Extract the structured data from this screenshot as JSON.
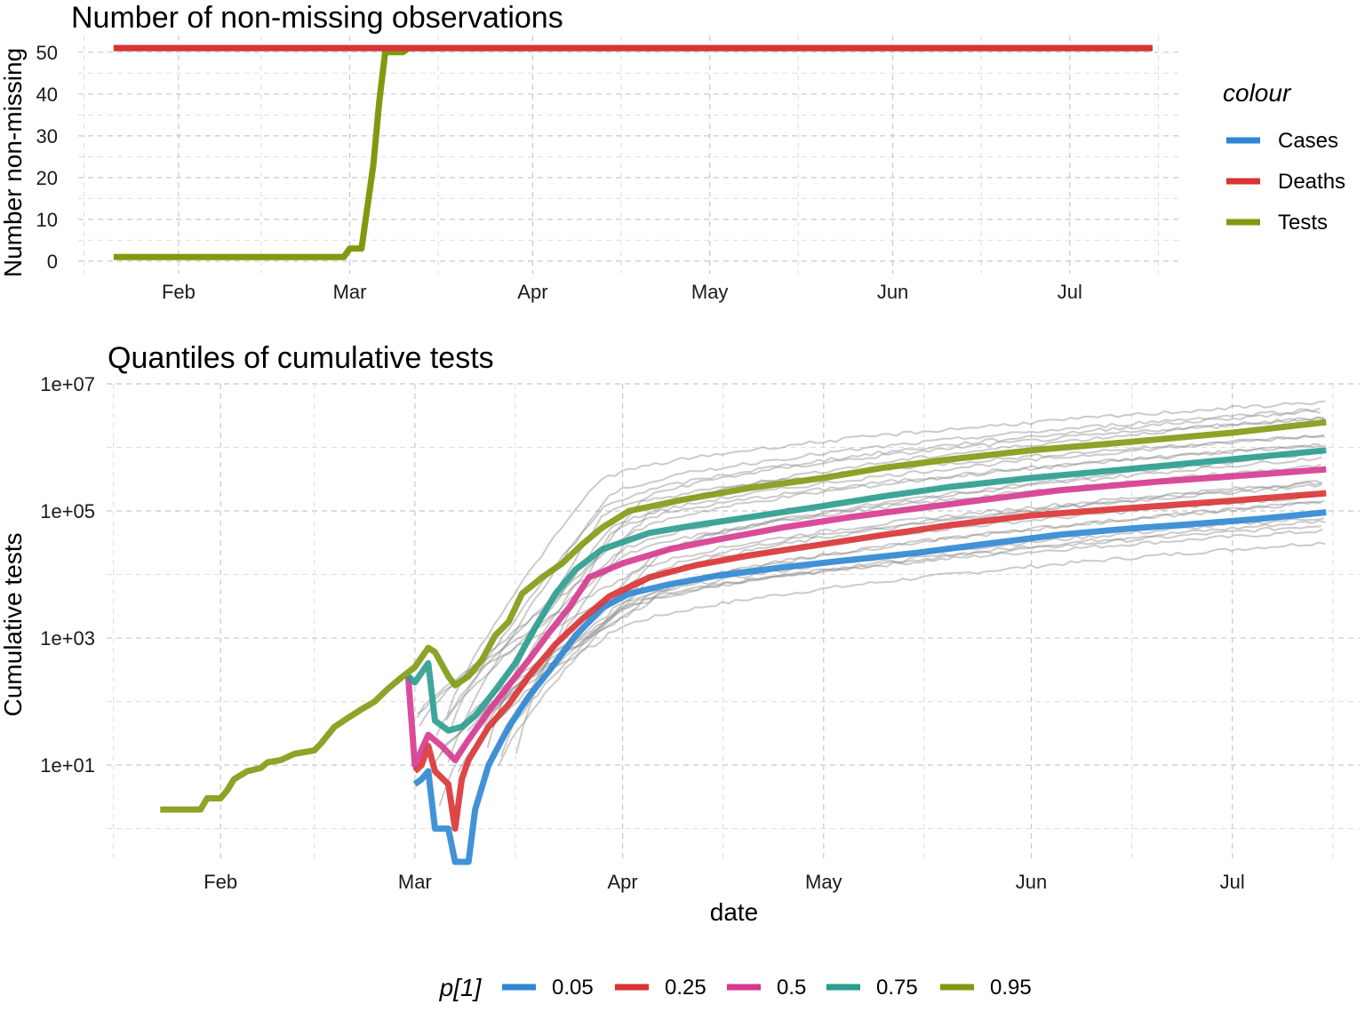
{
  "chart_data": [
    {
      "type": "line",
      "title": "Number of non-missing observations",
      "xlabel": "",
      "ylabel": "Number non-missing",
      "x_tick_labels": [
        "Feb",
        "Mar",
        "Apr",
        "May",
        "Jun",
        "Jul"
      ],
      "x_tick_dates": [
        "2020-02-01",
        "2020-03-01",
        "2020-04-01",
        "2020-05-01",
        "2020-06-01",
        "2020-07-01"
      ],
      "x_range": [
        "2020-01-15",
        "2020-07-20"
      ],
      "ylim": [
        -3,
        54
      ],
      "y_ticks": [
        0,
        10,
        20,
        30,
        40,
        50
      ],
      "grid": true,
      "legend": {
        "title": "colour",
        "position": "right"
      },
      "series": [
        {
          "name": "Cases",
          "color": "#2e86d4",
          "points": [
            [
              "2020-01-21",
              51
            ],
            [
              "2020-07-15",
              51
            ]
          ]
        },
        {
          "name": "Deaths",
          "color": "#d93333",
          "points": [
            [
              "2020-01-21",
              51
            ],
            [
              "2020-07-15",
              51
            ]
          ]
        },
        {
          "name": "Tests",
          "color": "#7f9a0f",
          "points": [
            [
              "2020-01-21",
              1
            ],
            [
              "2020-02-29",
              1
            ],
            [
              "2020-03-01",
              3
            ],
            [
              "2020-03-03",
              3
            ],
            [
              "2020-03-05",
              23
            ],
            [
              "2020-03-06",
              38
            ],
            [
              "2020-03-07",
              50
            ],
            [
              "2020-03-10",
              50
            ],
            [
              "2020-03-11",
              51
            ],
            [
              "2020-07-15",
              51
            ]
          ]
        }
      ]
    },
    {
      "type": "line",
      "title": "Quantiles of cumulative tests",
      "xlabel": "date",
      "ylabel": "Cumulative tests",
      "y_scale": "log10",
      "x_tick_labels": [
        "Feb",
        "Mar",
        "Apr",
        "May",
        "Jun",
        "Jul"
      ],
      "x_tick_dates": [
        "2020-02-01",
        "2020-03-01",
        "2020-04-01",
        "2020-05-01",
        "2020-06-01",
        "2020-07-01"
      ],
      "x_range": [
        "2020-01-15",
        "2020-07-20"
      ],
      "ylim": [
        0.3,
        10000000.0
      ],
      "y_ticks": [
        10,
        1000,
        100000,
        10000000
      ],
      "y_tick_labels": [
        "1e+01",
        "1e+03",
        "1e+05",
        "1e+07"
      ],
      "grid": true,
      "legend": {
        "title": "p[1]",
        "position": "bottom"
      },
      "background_lines": {
        "color": "#8c8c8c",
        "count": 24,
        "start_date_range": [
          "2020-03-01",
          "2020-03-17"
        ],
        "end_value_range": [
          40000,
          6000000
        ],
        "end_date": "2020-07-15"
      },
      "series": [
        {
          "name": "0.05",
          "color": "#2e86d4",
          "points": [
            [
              "2020-03-01",
              5
            ],
            [
              "2020-03-02",
              6
            ],
            [
              "2020-03-03",
              8
            ],
            [
              "2020-03-04",
              1
            ],
            [
              "2020-03-06",
              1
            ],
            [
              "2020-03-07",
              0.3
            ],
            [
              "2020-03-09",
              0.3
            ],
            [
              "2020-03-10",
              2
            ],
            [
              "2020-03-12",
              10
            ],
            [
              "2020-03-15",
              40
            ],
            [
              "2020-03-18",
              120
            ],
            [
              "2020-03-21",
              300
            ],
            [
              "2020-03-25",
              1100
            ],
            [
              "2020-03-29",
              3000
            ],
            [
              "2020-04-02",
              5000
            ],
            [
              "2020-04-08",
              7000
            ],
            [
              "2020-04-15",
              9500
            ],
            [
              "2020-04-25",
              13000
            ],
            [
              "2020-05-05",
              17000
            ],
            [
              "2020-05-15",
              22000
            ],
            [
              "2020-05-25",
              30000
            ],
            [
              "2020-06-05",
              42000
            ],
            [
              "2020-06-15",
              52000
            ],
            [
              "2020-06-25",
              62000
            ],
            [
              "2020-07-05",
              75000
            ],
            [
              "2020-07-15",
              95000
            ]
          ]
        },
        {
          "name": "0.25",
          "color": "#d93333",
          "points": [
            [
              "2020-03-01",
              8
            ],
            [
              "2020-03-02",
              10
            ],
            [
              "2020-03-03",
              20
            ],
            [
              "2020-03-04",
              8
            ],
            [
              "2020-03-06",
              5
            ],
            [
              "2020-03-07",
              1
            ],
            [
              "2020-03-08",
              6
            ],
            [
              "2020-03-09",
              12
            ],
            [
              "2020-03-12",
              40
            ],
            [
              "2020-03-15",
              90
            ],
            [
              "2020-03-18",
              250
            ],
            [
              "2020-03-22",
              800
            ],
            [
              "2020-03-26",
              2000
            ],
            [
              "2020-03-30",
              4500
            ],
            [
              "2020-04-05",
              9000
            ],
            [
              "2020-04-12",
              14000
            ],
            [
              "2020-04-20",
              20000
            ],
            [
              "2020-05-01",
              30000
            ],
            [
              "2020-05-10",
              42000
            ],
            [
              "2020-05-20",
              60000
            ],
            [
              "2020-06-01",
              85000
            ],
            [
              "2020-06-15",
              110000
            ],
            [
              "2020-07-01",
              145000
            ],
            [
              "2020-07-15",
              190000
            ]
          ]
        },
        {
          "name": "0.5",
          "color": "#d6388f",
          "points": [
            [
              "2020-02-29",
              250
            ],
            [
              "2020-03-01",
              10
            ],
            [
              "2020-03-03",
              30
            ],
            [
              "2020-03-05",
              20
            ],
            [
              "2020-03-07",
              12
            ],
            [
              "2020-03-09",
              25
            ],
            [
              "2020-03-12",
              70
            ],
            [
              "2020-03-15",
              180
            ],
            [
              "2020-03-18",
              450
            ],
            [
              "2020-03-21",
              1200
            ],
            [
              "2020-03-24",
              3000
            ],
            [
              "2020-03-27",
              9000
            ],
            [
              "2020-04-01",
              15000
            ],
            [
              "2020-04-08",
              25000
            ],
            [
              "2020-04-15",
              35000
            ],
            [
              "2020-04-25",
              55000
            ],
            [
              "2020-05-05",
              80000
            ],
            [
              "2020-05-15",
              110000
            ],
            [
              "2020-05-25",
              150000
            ],
            [
              "2020-06-05",
              210000
            ],
            [
              "2020-06-20",
              290000
            ],
            [
              "2020-07-01",
              350000
            ],
            [
              "2020-07-15",
              450000
            ]
          ]
        },
        {
          "name": "0.75",
          "color": "#2a9d8f",
          "points": [
            [
              "2020-02-29",
              250
            ],
            [
              "2020-03-01",
              200
            ],
            [
              "2020-03-03",
              400
            ],
            [
              "2020-03-04",
              50
            ],
            [
              "2020-03-06",
              35
            ],
            [
              "2020-03-08",
              40
            ],
            [
              "2020-03-10",
              60
            ],
            [
              "2020-03-13",
              150
            ],
            [
              "2020-03-16",
              400
            ],
            [
              "2020-03-19",
              1500
            ],
            [
              "2020-03-22",
              5000
            ],
            [
              "2020-03-25",
              12000
            ],
            [
              "2020-03-29",
              25000
            ],
            [
              "2020-04-05",
              45000
            ],
            [
              "2020-04-12",
              60000
            ],
            [
              "2020-04-20",
              80000
            ],
            [
              "2020-05-01",
              120000
            ],
            [
              "2020-05-10",
              170000
            ],
            [
              "2020-05-20",
              240000
            ],
            [
              "2020-06-01",
              330000
            ],
            [
              "2020-06-15",
              450000
            ],
            [
              "2020-07-01",
              650000
            ],
            [
              "2020-07-15",
              900000
            ]
          ]
        },
        {
          "name": "0.95",
          "color": "#7f9a0f",
          "points": [
            [
              "2020-01-23",
              2
            ],
            [
              "2020-01-29",
              2
            ],
            [
              "2020-01-30",
              3
            ],
            [
              "2020-02-01",
              3
            ],
            [
              "2020-02-02",
              4
            ],
            [
              "2020-02-03",
              6
            ],
            [
              "2020-02-05",
              8
            ],
            [
              "2020-02-07",
              9
            ],
            [
              "2020-02-08",
              11
            ],
            [
              "2020-02-10",
              12
            ],
            [
              "2020-02-12",
              15
            ],
            [
              "2020-02-15",
              17
            ],
            [
              "2020-02-16",
              22
            ],
            [
              "2020-02-18",
              40
            ],
            [
              "2020-02-20",
              55
            ],
            [
              "2020-02-22",
              75
            ],
            [
              "2020-02-24",
              100
            ],
            [
              "2020-02-26",
              160
            ],
            [
              "2020-02-28",
              240
            ],
            [
              "2020-03-01",
              350
            ],
            [
              "2020-03-03",
              700
            ],
            [
              "2020-03-04",
              600
            ],
            [
              "2020-03-06",
              250
            ],
            [
              "2020-03-07",
              180
            ],
            [
              "2020-03-09",
              250
            ],
            [
              "2020-03-11",
              450
            ],
            [
              "2020-03-13",
              1100
            ],
            [
              "2020-03-15",
              1800
            ],
            [
              "2020-03-17",
              5000
            ],
            [
              "2020-03-20",
              9000
            ],
            [
              "2020-03-23",
              15000
            ],
            [
              "2020-03-26",
              30000
            ],
            [
              "2020-03-29",
              55000
            ],
            [
              "2020-04-02",
              100000
            ],
            [
              "2020-04-10",
              150000
            ],
            [
              "2020-04-20",
              230000
            ],
            [
              "2020-05-01",
              330000
            ],
            [
              "2020-05-10",
              480000
            ],
            [
              "2020-05-20",
              650000
            ],
            [
              "2020-06-01",
              900000
            ],
            [
              "2020-06-15",
              1200000
            ],
            [
              "2020-07-01",
              1700000
            ],
            [
              "2020-07-15",
              2500000
            ]
          ]
        }
      ]
    }
  ]
}
